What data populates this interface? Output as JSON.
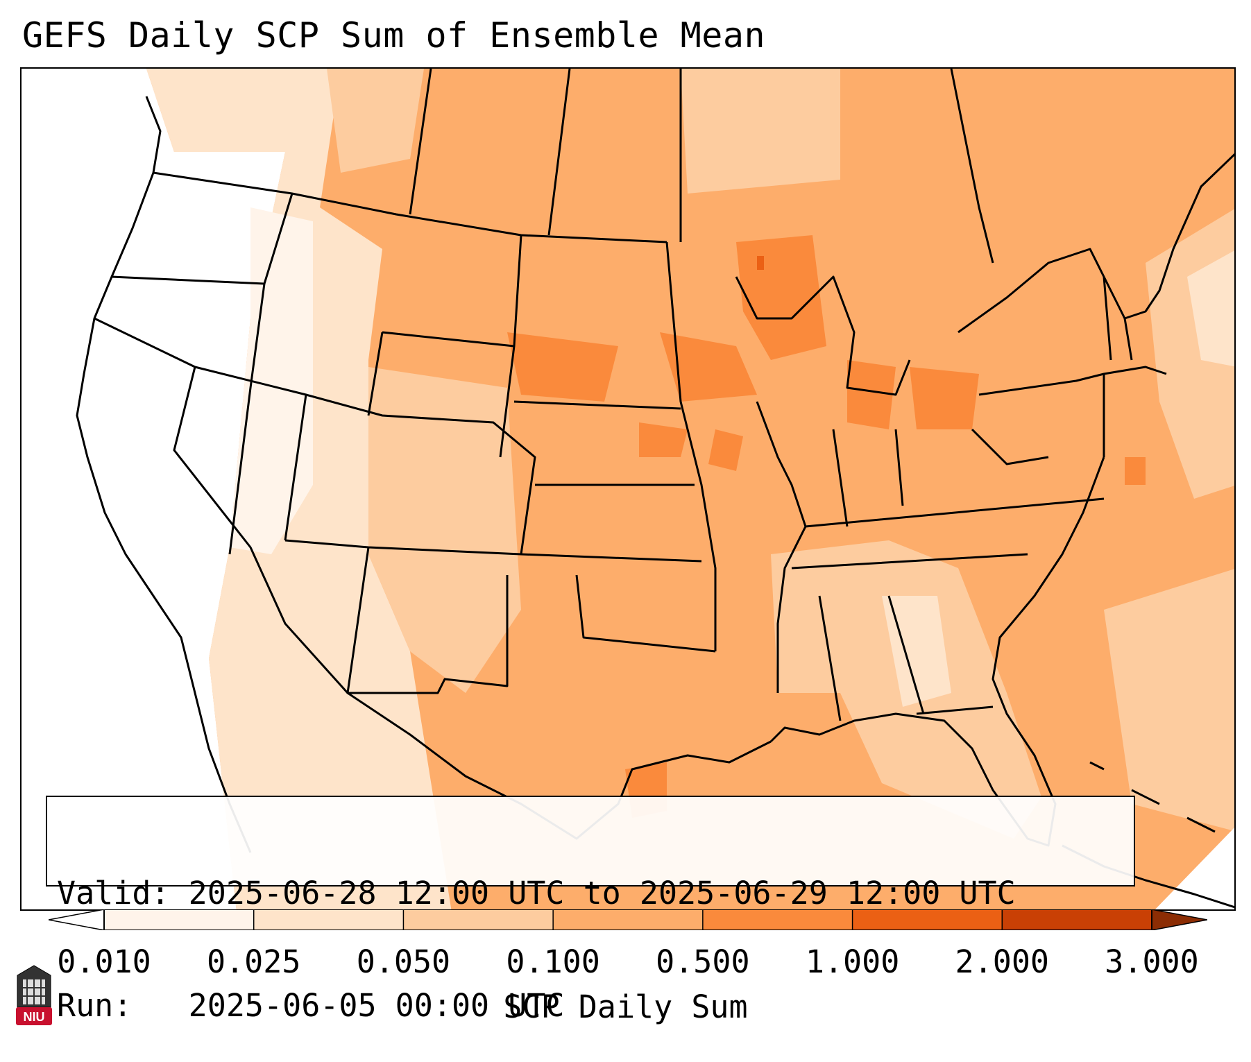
{
  "title": "GEFS Daily SCP Sum of Ensemble Mean",
  "info": {
    "valid_line": "Valid: 2025-06-28 12:00 UTC to 2025-06-29 12:00 UTC",
    "run_line": "Run:   2025-06-05 00:00 UTC"
  },
  "colorbar": {
    "label": "SCP Daily Sum",
    "ticks": [
      "0.010",
      "0.025",
      "0.050",
      "0.100",
      "0.500",
      "1.000",
      "2.000",
      "3.000"
    ],
    "colors": [
      "#fff4ea",
      "#fee4ca",
      "#fdcc9f",
      "#fdad6b",
      "#fa8a3c",
      "#eb6014",
      "#c94005"
    ],
    "under_color": "#ffffff",
    "over_color": "#8c2d04"
  },
  "logo": {
    "text": "NIU",
    "color": "#c8102e"
  }
}
